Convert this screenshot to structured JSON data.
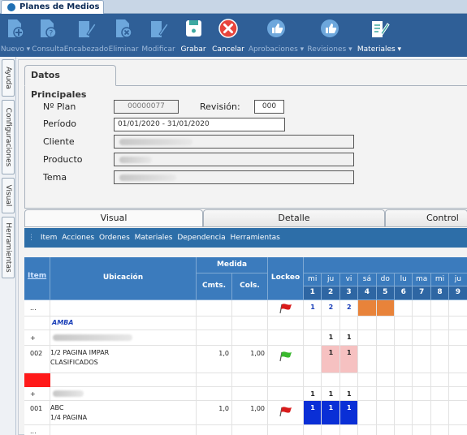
{
  "window": {
    "tab_title": "Planes de Medios"
  },
  "toolbar": {
    "items": [
      {
        "label": "Nuevo ▾",
        "icon": "new-document-icon",
        "enabled": false
      },
      {
        "label": "Consulta",
        "icon": "query-document-icon",
        "enabled": false
      },
      {
        "label": "Encabezado",
        "icon": "edit-header-icon",
        "enabled": false
      },
      {
        "label": "Eliminar",
        "icon": "delete-document-icon",
        "enabled": false
      },
      {
        "label": "Modificar",
        "icon": "modify-document-icon",
        "enabled": false
      },
      {
        "label": "Grabar",
        "icon": "save-icon",
        "enabled": true
      },
      {
        "label": "Cancelar",
        "icon": "cancel-icon",
        "enabled": true
      },
      {
        "label": "Aprobaciones ▾",
        "icon": "thumbs-up-icon",
        "enabled": false
      },
      {
        "label": "Revisiones ▾",
        "icon": "thumbs-up-icon",
        "enabled": false
      },
      {
        "label": "Materiales ▾",
        "icon": "materials-icon",
        "enabled": true
      }
    ]
  },
  "sidebar": {
    "tabs": [
      "Ayuda",
      "Configuraciones",
      "Visual",
      "Herramientas"
    ]
  },
  "main_tab": {
    "label": "Datos Principales"
  },
  "form": {
    "plan_label": "Nº Plan",
    "plan_value": "00000077",
    "revision_label": "Revisión:",
    "revision_value": "000",
    "periodo_label": "Período",
    "periodo_value": "01/01/2020 - 31/01/2020",
    "cliente_label": "Cliente",
    "producto_label": "Producto",
    "tema_label": "Tema"
  },
  "subtabs": [
    "Visual",
    "Detalle",
    "Control Ac"
  ],
  "grid_menu": {
    "items": [
      "Item",
      "Acciones",
      "Ordenes",
      "Materiales",
      "Dependencia",
      "Herramientas"
    ]
  },
  "grid": {
    "headers": {
      "item": "Item",
      "ubicacion": "Ubicación",
      "medida": "Medida",
      "cmts": "Cmts.",
      "cols": "Cols.",
      "lockeo": "Lockeo"
    },
    "days": [
      "mi",
      "ju",
      "vi",
      "sá",
      "do",
      "lu",
      "ma",
      "mi",
      "ju"
    ],
    "day_numbers": [
      "1",
      "2",
      "3",
      "4",
      "5",
      "6",
      "7",
      "8",
      "9"
    ],
    "rows": {
      "r0_item": "...",
      "r0_counts": [
        "1",
        "2",
        "2"
      ],
      "r1_ubic": "AMBA",
      "r2_item": "+",
      "r2_counts": [
        "1",
        "1"
      ],
      "r3_item": "002",
      "r3_ubic1": "1/2 PAGINA IMPAR",
      "r3_ubic2": "CLASIFICADOS",
      "r3_cmts": "1,0",
      "r3_cols": "1,00",
      "r3_counts": [
        "1",
        "1"
      ],
      "r5_item": "+",
      "r5_counts": [
        "1",
        "1",
        "1"
      ],
      "r6_item": "001",
      "r6_ubic1": "ABC",
      "r6_ubic2": "1/4 PAGINA",
      "r6_cmts": "1,0",
      "r6_cols": "1,00",
      "r6_counts": [
        "1",
        "1",
        "1"
      ],
      "r7_item": "..."
    }
  },
  "colors": {
    "toolbar_bg": "#2f5f97",
    "grid_header": "#3b7bbd",
    "weekend": "#e8833a",
    "pink": "#f6c1c1",
    "blue_cell": "#0a2fd6",
    "flag_red": "#d81b1b",
    "flag_green": "#3ab82e"
  }
}
